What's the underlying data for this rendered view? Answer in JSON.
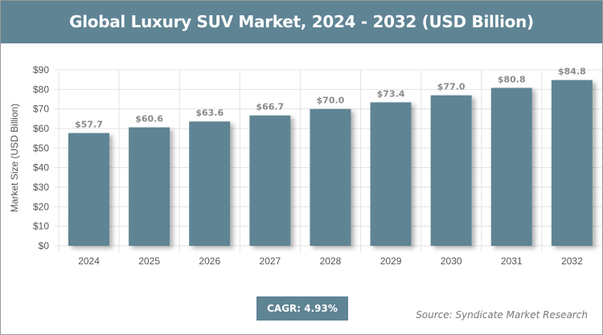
{
  "chart_data": {
    "type": "bar",
    "title": "Global Luxury SUV Market, 2024 - 2032 (USD Billion)",
    "xlabel": "",
    "ylabel": "Market Size (USD Billion)",
    "categories": [
      "2024",
      "2025",
      "2026",
      "2027",
      "2028",
      "2029",
      "2030",
      "2031",
      "2032"
    ],
    "values": [
      57.7,
      60.6,
      63.6,
      66.7,
      70.0,
      73.4,
      77.0,
      80.8,
      84.8
    ],
    "data_labels": [
      "$57.7",
      "$60.6",
      "$63.6",
      "$66.7",
      "$70.0",
      "$73.4",
      "$77.0",
      "$80.8",
      "$84.8"
    ],
    "ylim": [
      0,
      90
    ],
    "yticks": [
      0,
      10,
      20,
      30,
      40,
      50,
      60,
      70,
      80,
      90
    ],
    "ytick_labels": [
      "$0",
      "$10",
      "$20",
      "$30",
      "$40",
      "$50",
      "$60",
      "$70",
      "$80",
      "$90"
    ],
    "grid": true,
    "colors": {
      "bar": "#5f8494",
      "header": "#5f8494"
    }
  },
  "cagr": "CAGR: 4.93%",
  "source": "Source: Syndicate Market Research"
}
